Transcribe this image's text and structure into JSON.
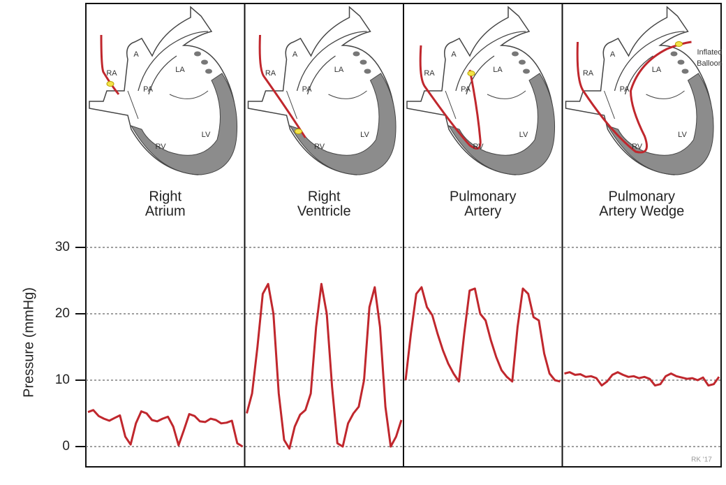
{
  "chart_data": {
    "type": "line",
    "ylabel": "Pressure (mmHg)",
    "ylim": [
      -3,
      30
    ],
    "yticks": [
      0,
      10,
      20,
      30
    ],
    "grid": true,
    "color": "#c0272d",
    "credit": "RK '17",
    "panels": [
      {
        "label": [
          "Right",
          "Atrium"
        ],
        "heart_labels": [
          "A",
          "RA",
          "LA",
          "PA",
          "RV",
          "LV"
        ],
        "values": [
          5.2,
          5.5,
          4.6,
          4.2,
          3.9,
          4.3,
          4.7,
          1.5,
          0.3,
          3.5,
          5.3,
          5.0,
          4.0,
          3.8,
          4.2,
          4.5,
          3.0,
          0.2,
          2.5,
          4.9,
          4.6,
          3.8,
          3.7,
          4.2,
          4.0,
          3.5,
          3.6,
          3.9,
          0.5,
          0.0
        ]
      },
      {
        "label": [
          "Right",
          "Ventricle"
        ],
        "heart_labels": [
          "A",
          "RA",
          "LA",
          "PA",
          "RV",
          "LV"
        ],
        "values": [
          5,
          8,
          15,
          23,
          24.5,
          20,
          8,
          1,
          -0.3,
          3,
          4.8,
          5.5,
          8,
          18,
          24.5,
          20,
          9,
          0.5,
          0,
          3.5,
          5,
          6,
          10,
          21,
          24,
          18,
          6,
          0,
          1.5,
          4
        ]
      },
      {
        "label": [
          "Pulmonary",
          "Artery"
        ],
        "heart_labels": [
          "A",
          "RA",
          "LA",
          "PA",
          "RV",
          "LV"
        ],
        "values": [
          10,
          17,
          23,
          24,
          21,
          19.8,
          17,
          14.5,
          12.5,
          11,
          9.8,
          17,
          23.5,
          23.8,
          20,
          19,
          16,
          13.5,
          11.5,
          10.5,
          9.8,
          18,
          23.8,
          23,
          19.5,
          19,
          14,
          11,
          10,
          9.8
        ]
      },
      {
        "label": [
          "Pulmonary",
          "Artery Wedge"
        ],
        "heart_labels": [
          "A",
          "RA",
          "LA",
          "PA",
          "RV",
          "LV"
        ],
        "balloon_label": [
          "Inflated",
          "Balloon"
        ],
        "values": [
          11,
          11.2,
          10.8,
          10.9,
          10.5,
          10.6,
          10.3,
          9.2,
          9.8,
          10.8,
          11.2,
          10.8,
          10.5,
          10.6,
          10.3,
          10.5,
          10.2,
          9.2,
          9.4,
          10.6,
          11,
          10.6,
          10.4,
          10.2,
          10.3,
          10.0,
          10.4,
          9.2,
          9.4,
          10.5
        ]
      }
    ]
  }
}
